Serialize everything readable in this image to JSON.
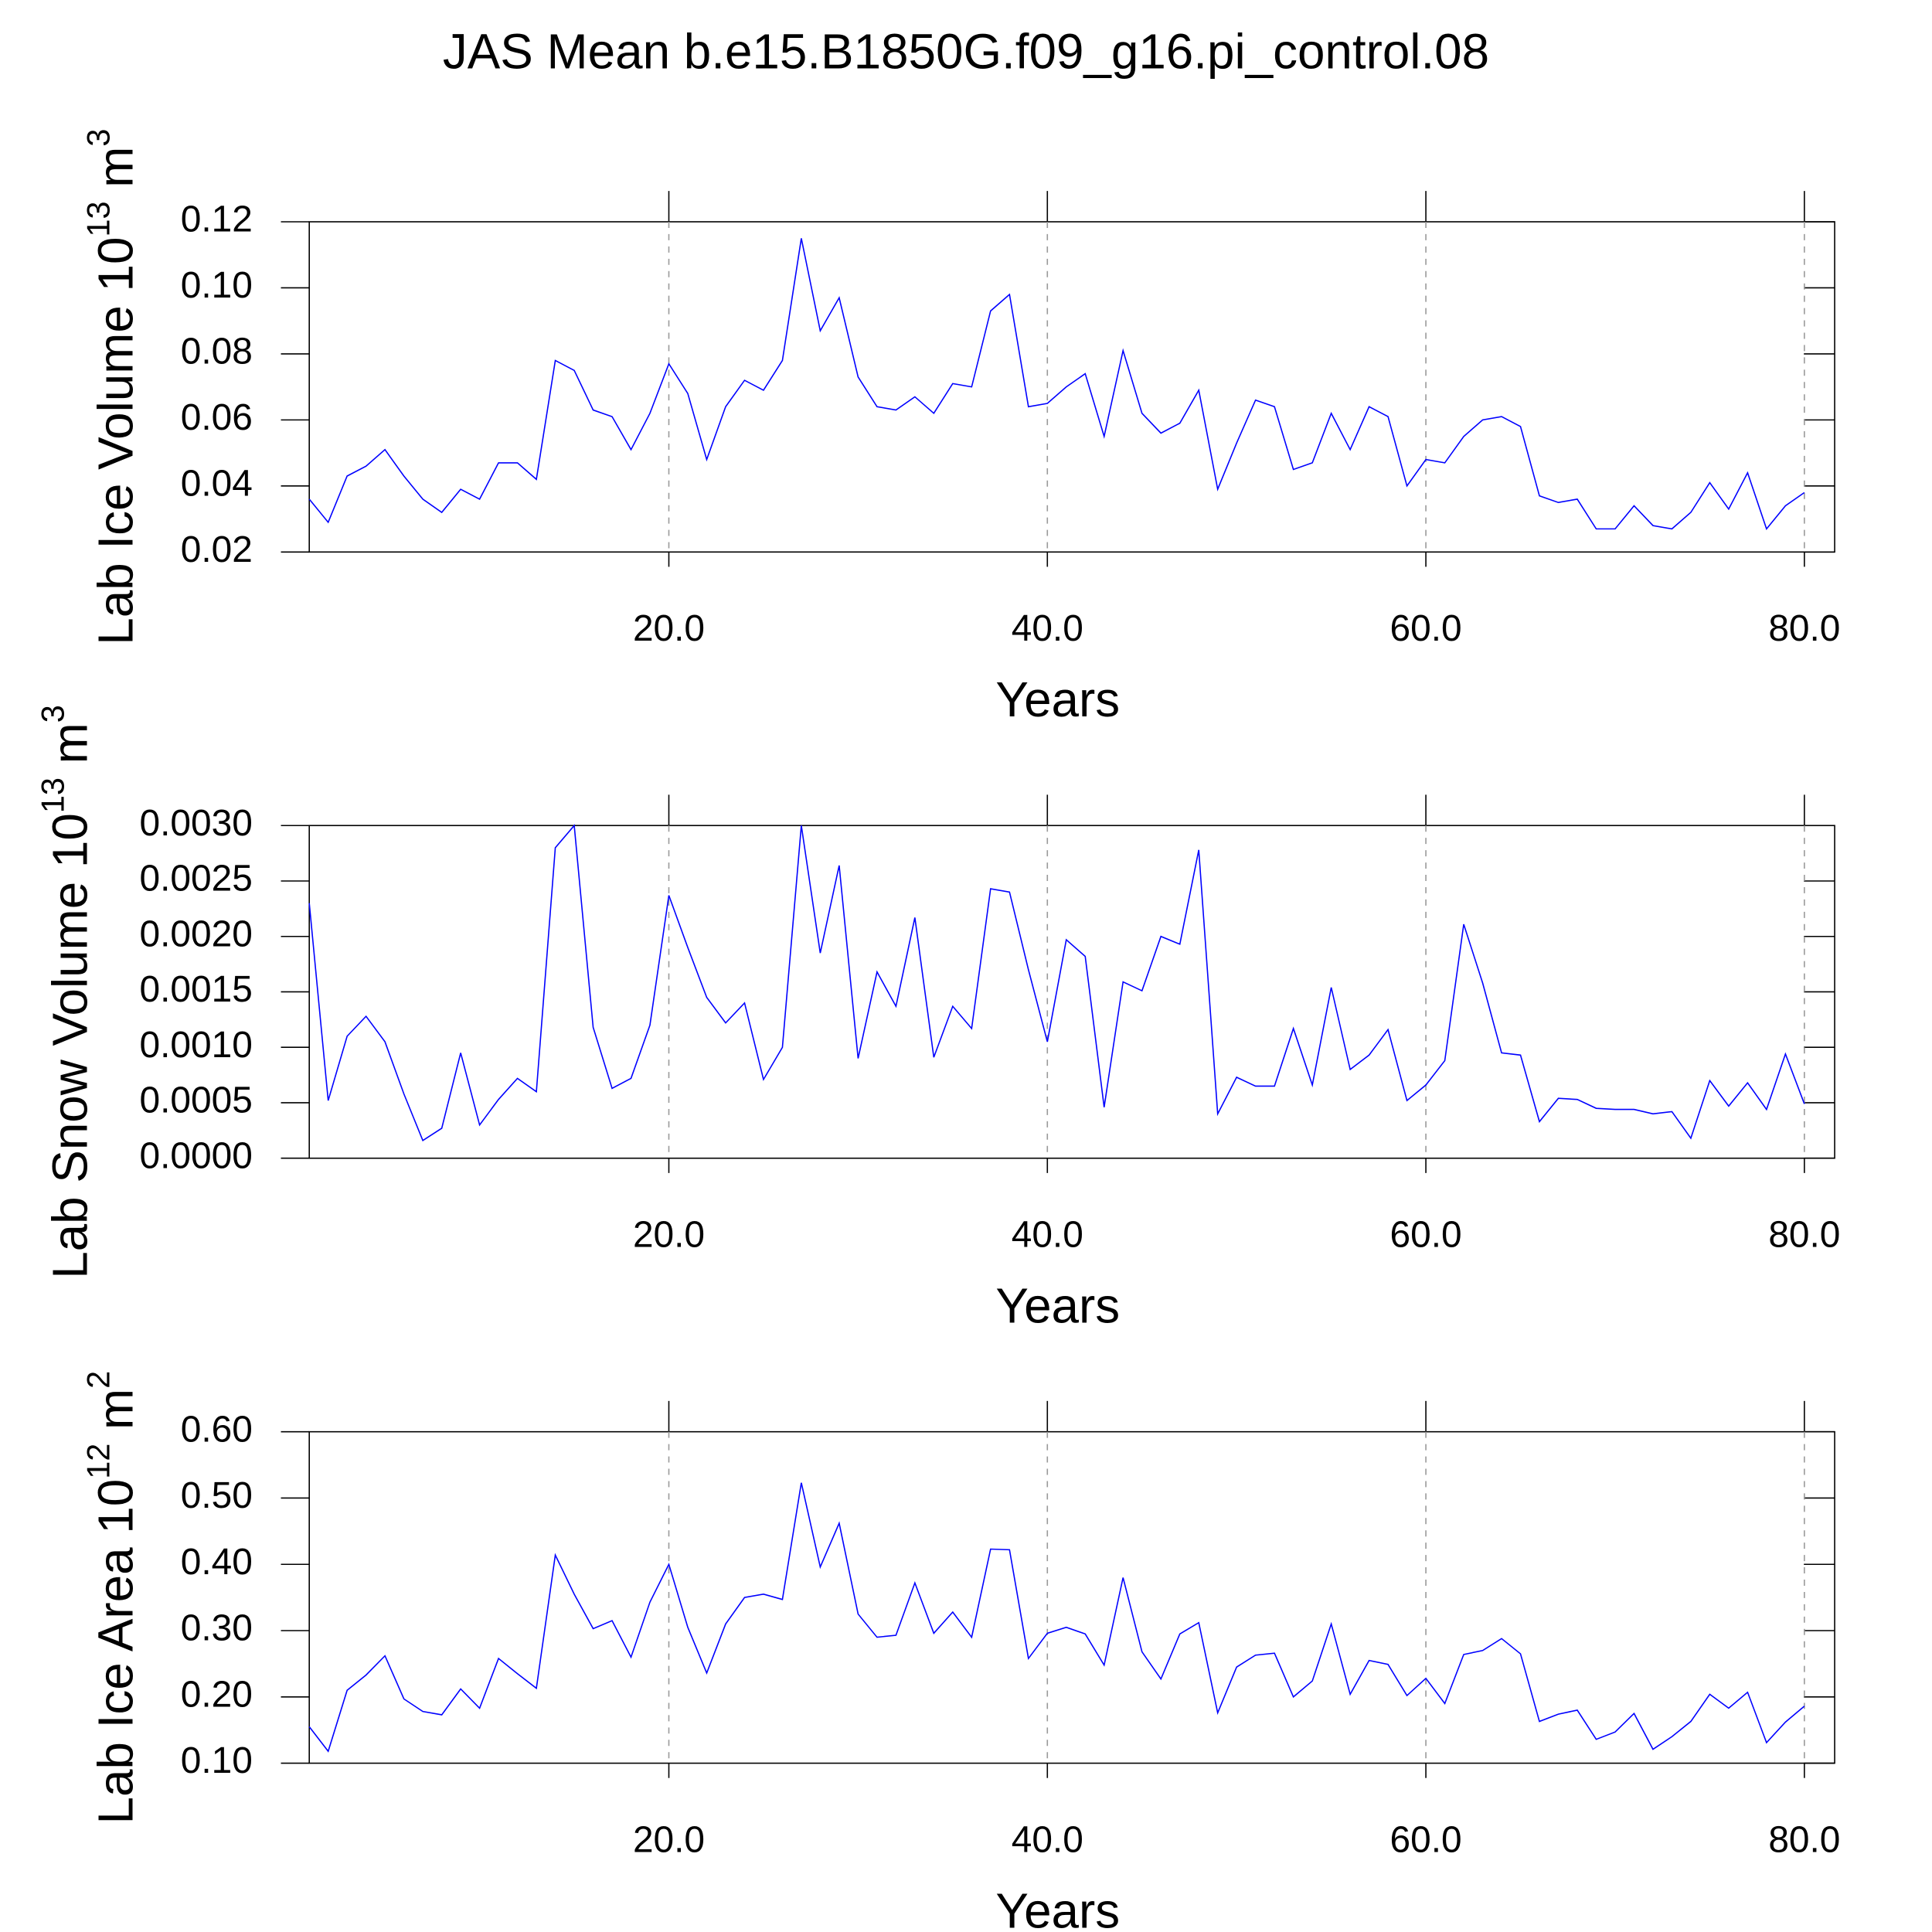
{
  "title": "JAS Mean b.e15.B1850G.f09_g16.pi_control.08",
  "chart_data": [
    {
      "type": "line",
      "y_label": {
        "text": "Lab Ice Volume 10",
        "exponent": "13",
        "unit": " m",
        "unit_exponent": "3"
      },
      "x_label": "Years",
      "x": [
        1,
        2,
        3,
        4,
        5,
        6,
        7,
        8,
        9,
        10,
        11,
        12,
        13,
        14,
        15,
        16,
        17,
        18,
        19,
        20,
        21,
        22,
        23,
        24,
        25,
        26,
        27,
        28,
        29,
        30,
        31,
        32,
        33,
        34,
        35,
        36,
        37,
        38,
        39,
        40,
        41,
        42,
        43,
        44,
        45,
        46,
        47,
        48,
        49,
        50,
        51,
        52,
        53,
        54,
        55,
        56,
        57,
        58,
        59,
        60,
        61,
        62,
        63,
        64,
        65,
        66,
        67,
        68,
        69,
        70,
        71,
        72,
        73,
        74,
        75,
        76,
        77,
        78,
        79,
        80
      ],
      "series": [
        {
          "color": "#0000ff",
          "values": [
            0.036,
            0.029,
            0.043,
            0.046,
            0.051,
            0.043,
            0.036,
            0.032,
            0.039,
            0.036,
            0.047,
            0.047,
            0.042,
            0.078,
            0.075,
            0.063,
            0.061,
            0.051,
            0.062,
            0.077,
            0.068,
            0.048,
            0.064,
            0.072,
            0.069,
            0.078,
            0.115,
            0.087,
            0.097,
            0.073,
            0.064,
            0.063,
            0.067,
            0.062,
            0.071,
            0.07,
            0.093,
            0.098,
            0.064,
            0.065,
            0.07,
            0.074,
            0.055,
            0.081,
            0.062,
            0.056,
            0.059,
            0.069,
            0.039,
            0.053,
            0.066,
            0.064,
            0.045,
            0.047,
            0.062,
            0.051,
            0.064,
            0.061,
            0.04,
            0.048,
            0.047,
            0.055,
            0.06,
            0.061,
            0.058,
            0.037,
            0.035,
            0.036,
            0.027,
            0.027,
            0.034,
            0.028,
            0.027,
            0.032,
            0.041,
            0.033,
            0.044,
            0.027,
            0.034,
            0.038
          ]
        }
      ],
      "xlim": [
        1,
        81.6
      ],
      "xticks": [
        {
          "value": 20,
          "label": "20.0"
        },
        {
          "value": 40,
          "label": "40.0"
        },
        {
          "value": 60,
          "label": "60.0"
        },
        {
          "value": 80,
          "label": "80.0"
        }
      ],
      "ylim": [
        0.02,
        0.12
      ],
      "yticks": [
        0.02,
        0.04,
        0.06,
        0.08,
        {
          "value": 0.1,
          "label": "0.10"
        },
        0.12
      ],
      "grid": true
    },
    {
      "type": "line",
      "y_label": {
        "text": "Lab Snow Volume 10",
        "exponent": "13",
        "unit": " m",
        "unit_exponent": "3"
      },
      "x_label": "Years",
      "x": [
        1,
        2,
        3,
        4,
        5,
        6,
        7,
        8,
        9,
        10,
        11,
        12,
        13,
        14,
        15,
        16,
        17,
        18,
        19,
        20,
        21,
        22,
        23,
        24,
        25,
        26,
        27,
        28,
        29,
        30,
        31,
        32,
        33,
        34,
        35,
        36,
        37,
        38,
        39,
        40,
        41,
        42,
        43,
        44,
        45,
        46,
        47,
        48,
        49,
        50,
        51,
        52,
        53,
        54,
        55,
        56,
        57,
        58,
        59,
        60,
        61,
        62,
        63,
        64,
        65,
        66,
        67,
        68,
        69,
        70,
        71,
        72,
        73,
        74,
        75,
        76,
        77,
        78,
        79,
        80
      ],
      "series": [
        {
          "color": "#0000ff",
          "values": [
            0.0023,
            0.00052,
            0.0011,
            0.00128,
            0.00105,
            0.00058,
            0.00016,
            0.00027,
            0.00095,
            0.0003,
            0.00053,
            0.00072,
            0.0006,
            0.0028,
            0.003,
            0.00118,
            0.00063,
            0.00072,
            0.0012,
            0.00237,
            0.0019,
            0.00145,
            0.00122,
            0.0014,
            0.00071,
            0.001,
            0.003,
            0.00185,
            0.00264,
            0.0009,
            0.00168,
            0.00137,
            0.00217,
            0.00091,
            0.00137,
            0.00117,
            0.00243,
            0.0024,
            0.0017,
            0.00105,
            0.00197,
            0.00182,
            0.00046,
            0.00159,
            0.00151,
            0.002,
            0.00193,
            0.00278,
            0.0004,
            0.00073,
            0.00065,
            0.00065,
            0.00117,
            0.00066,
            0.00154,
            0.0008,
            0.00093,
            0.00116,
            0.00052,
            0.00066,
            0.00088,
            0.00211,
            0.00158,
            0.00095,
            0.00093,
            0.00033,
            0.00054,
            0.00053,
            0.00045,
            0.00044,
            0.00044,
            0.0004,
            0.00042,
            0.00018,
            0.0007,
            0.00047,
            0.00068,
            0.00044,
            0.00094,
            0.00049
          ]
        }
      ],
      "xlim": [
        1,
        81.6
      ],
      "xticks": [
        {
          "value": 20,
          "label": "20.0"
        },
        {
          "value": 40,
          "label": "40.0"
        },
        {
          "value": 60,
          "label": "60.0"
        },
        {
          "value": 80,
          "label": "80.0"
        }
      ],
      "ylim": [
        0,
        0.003
      ],
      "yticks": [
        {
          "value": 0,
          "label": "0.0000"
        },
        {
          "value": 0.0005,
          "label": "0.0005"
        },
        {
          "value": 0.001,
          "label": "0.0010"
        },
        {
          "value": 0.0015,
          "label": "0.0015"
        },
        {
          "value": 0.002,
          "label": "0.0020"
        },
        {
          "value": 0.0025,
          "label": "0.0025"
        },
        {
          "value": 0.003,
          "label": "0.0030"
        }
      ],
      "grid": true
    },
    {
      "type": "line",
      "y_label": {
        "text": "Lab Ice Area 10",
        "exponent": "12",
        "unit": " m",
        "unit_exponent": "2"
      },
      "x_label": "Years",
      "x": [
        1,
        2,
        3,
        4,
        5,
        6,
        7,
        8,
        9,
        10,
        11,
        12,
        13,
        14,
        15,
        16,
        17,
        18,
        19,
        20,
        21,
        22,
        23,
        24,
        25,
        26,
        27,
        28,
        29,
        30,
        31,
        32,
        33,
        34,
        35,
        36,
        37,
        38,
        39,
        40,
        41,
        42,
        43,
        44,
        45,
        46,
        47,
        48,
        49,
        50,
        51,
        52,
        53,
        54,
        55,
        56,
        57,
        58,
        59,
        60,
        61,
        62,
        63,
        64,
        65,
        66,
        67,
        68,
        69,
        70,
        71,
        72,
        73,
        74,
        75,
        76,
        77,
        78,
        79,
        80
      ],
      "series": [
        {
          "color": "#0000ff",
          "values": [
            0.155,
            0.118,
            0.21,
            0.233,
            0.262,
            0.197,
            0.178,
            0.173,
            0.212,
            0.183,
            0.258,
            0.235,
            0.213,
            0.414,
            0.355,
            0.303,
            0.315,
            0.26,
            0.343,
            0.4,
            0.305,
            0.236,
            0.31,
            0.35,
            0.355,
            0.347,
            0.523,
            0.396,
            0.462,
            0.325,
            0.29,
            0.293,
            0.372,
            0.296,
            0.328,
            0.29,
            0.423,
            0.422,
            0.258,
            0.296,
            0.305,
            0.295,
            0.248,
            0.38,
            0.268,
            0.227,
            0.295,
            0.312,
            0.176,
            0.245,
            0.263,
            0.266,
            0.2,
            0.224,
            0.31,
            0.204,
            0.255,
            0.249,
            0.202,
            0.228,
            0.19,
            0.264,
            0.27,
            0.288,
            0.265,
            0.163,
            0.174,
            0.18,
            0.136,
            0.147,
            0.175,
            0.121,
            0.14,
            0.163,
            0.204,
            0.183,
            0.207,
            0.131,
            0.162,
            0.186
          ]
        }
      ],
      "xlim": [
        1,
        81.6
      ],
      "xticks": [
        {
          "value": 20,
          "label": "20.0"
        },
        {
          "value": 40,
          "label": "40.0"
        },
        {
          "value": 60,
          "label": "60.0"
        },
        {
          "value": 80,
          "label": "80.0"
        }
      ],
      "ylim": [
        0.1,
        0.6
      ],
      "yticks": [
        {
          "value": 0.1,
          "label": "0.10"
        },
        {
          "value": 0.2,
          "label": "0.20"
        },
        {
          "value": 0.3,
          "label": "0.30"
        },
        {
          "value": 0.4,
          "label": "0.40"
        },
        {
          "value": 0.5,
          "label": "0.50"
        },
        {
          "value": 0.6,
          "label": "0.60"
        }
      ],
      "grid": true
    }
  ]
}
